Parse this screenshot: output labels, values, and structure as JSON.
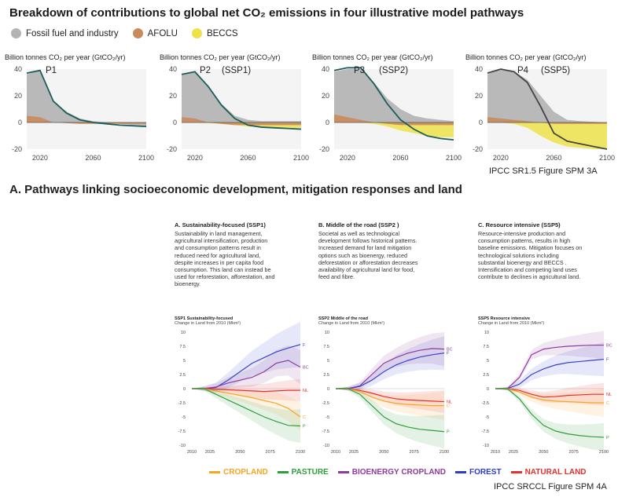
{
  "header": {
    "title": "Breakdown of contributions to global net CO₂ emissions in four illustrative model pathways",
    "legend": [
      {
        "label": "Fossil fuel and industry",
        "color": "#b3b3b3"
      },
      {
        "label": "AFOLU",
        "color": "#c98b5a"
      },
      {
        "label": "BECCS",
        "color": "#ede24a"
      }
    ],
    "caption": "IPCC SR1.5 Figure SPM 3A"
  },
  "section2": {
    "title": "A. Pathways linking socioeconomic development, mitigation responses and land",
    "caption": "IPCC SRCCL Figure SPM 4A",
    "legend": [
      {
        "label": "CROPLAND",
        "color": "#f5a623"
      },
      {
        "label": "PASTURE",
        "color": "#2e9e3a"
      },
      {
        "label": "BIOENERGY CROPLAND",
        "color": "#8e3a9e"
      },
      {
        "label": "FOREST",
        "color": "#2e3acb"
      },
      {
        "label": "NATURAL LAND",
        "color": "#e53030"
      }
    ],
    "columns": [
      {
        "heading": "A. Sustainability-focused (SSP1)",
        "lines": [
          "Sustainability in land management,",
          "agricultural intensification, production",
          "and consumption patterns result in",
          "reduced need for agricultural land,",
          "despite increases in per capita food",
          "consumption. This land can instead be",
          "used for reforestation, afforestation, and",
          "bioenergy."
        ],
        "chart_title": "SSP1 Sustainability-focused",
        "chart_sub": "Change in Land from 2010 (Mkm²)"
      },
      {
        "heading": "B. Middle of the road (SSP2 )",
        "lines": [
          "Societal as well as technological",
          "development follows historical patterns.",
          "Increased demand for land mitigation",
          "options such as bioenergy, reduced",
          "deforestation or afforestation decreases",
          "availability of agricultural land for food,",
          "feed and fibre."
        ],
        "chart_title": "SSP2 Middle of the road",
        "chart_sub": "Change in Land from 2010 (Mkm²)"
      },
      {
        "heading": "C. Resource intensive (SSP5)",
        "lines": [
          "Resource-intensive production and",
          "consumption patterns,  results in high",
          "baseline emissions.  Mitigation focuses on",
          "technological solutions including",
          "substantial bioenergy and BECCS .",
          "Intensification and competing land uses",
          "contribute to declines in agricultural land."
        ],
        "chart_title": "SSP5 Resource intensive",
        "chart_sub": "Change in Land from 2010 (Mkm²)"
      }
    ]
  },
  "chart_data": [
    {
      "type": "area",
      "id": "P1",
      "label": "P1",
      "label2": "",
      "ylabel": "Billion tonnes CO₂ per year (GtCO₂/yr)",
      "x": [
        2010,
        2020,
        2030,
        2040,
        2050,
        2060,
        2070,
        2080,
        2090,
        2100
      ],
      "series": [
        {
          "name": "Fossil fuel and industry",
          "values": [
            36,
            39,
            16,
            8,
            3,
            1,
            0,
            -1,
            -2,
            -3
          ]
        },
        {
          "name": "AFOLU",
          "values": [
            5,
            4,
            0,
            -0.5,
            -1,
            -1,
            -1,
            -1,
            -1,
            -1
          ]
        },
        {
          "name": "BECCS",
          "values": [
            0,
            0,
            0,
            0,
            0,
            -0.2,
            -0.3,
            -0.4,
            -0.5,
            -0.5
          ]
        },
        {
          "name": "Net",
          "values": [
            37,
            39,
            16,
            7,
            2,
            0,
            -1,
            -2,
            -2.5,
            -3
          ]
        }
      ],
      "xticks": [
        "2020",
        "2060",
        "2100"
      ],
      "yticks": [
        40,
        20,
        0,
        -20
      ],
      "ylim": [
        -20,
        40
      ]
    },
    {
      "type": "area",
      "id": "P2",
      "label": "P2",
      "label2": "(SSP1)",
      "ylabel": "Billion tonnes CO₂ per year (GtCO₂/yr)",
      "x": [
        2010,
        2020,
        2030,
        2040,
        2050,
        2060,
        2070,
        2080,
        2090,
        2100
      ],
      "series": [
        {
          "name": "Fossil fuel and industry",
          "values": [
            36,
            38,
            27,
            14,
            5,
            2,
            1,
            1,
            1,
            1
          ]
        },
        {
          "name": "AFOLU",
          "values": [
            4,
            3,
            0,
            -1,
            -2,
            -2,
            -2,
            -2,
            -2,
            -2
          ]
        },
        {
          "name": "BECCS",
          "values": [
            0,
            0,
            -0.5,
            -1,
            -2,
            -3,
            -3.5,
            -4,
            -4,
            -4
          ]
        },
        {
          "name": "Net",
          "values": [
            36,
            38,
            27,
            13,
            3,
            -2,
            -3.5,
            -4,
            -4.5,
            -5
          ]
        }
      ],
      "xticks": [
        "2020",
        "2060",
        "2100"
      ],
      "yticks": [
        40,
        20,
        0,
        -20
      ],
      "ylim": [
        -20,
        40
      ]
    },
    {
      "type": "area",
      "id": "P3",
      "label": "P3",
      "label2": "(SSP2)",
      "ylabel": "Billion tonnes CO₂ per year (GtCO₂/yr)",
      "x": [
        2010,
        2020,
        2030,
        2040,
        2050,
        2060,
        2070,
        2080,
        2090,
        2100
      ],
      "series": [
        {
          "name": "Fossil fuel and industry",
          "values": [
            38,
            40,
            40,
            30,
            18,
            10,
            5,
            3,
            2,
            1
          ]
        },
        {
          "name": "AFOLU",
          "values": [
            6,
            4,
            2,
            0,
            -1,
            -2,
            -2,
            -2,
            -2,
            -2
          ]
        },
        {
          "name": "BECCS",
          "values": [
            0,
            0,
            0,
            -1,
            -3,
            -6,
            -8,
            -10,
            -11,
            -11
          ]
        },
        {
          "name": "Net",
          "values": [
            39,
            41,
            41,
            29,
            14,
            2,
            -5,
            -10,
            -12,
            -13
          ]
        }
      ],
      "xticks": [
        "2020",
        "2060",
        "2100"
      ],
      "yticks": [
        40,
        20,
        0,
        -20
      ],
      "ylim": [
        -20,
        40
      ]
    },
    {
      "type": "area",
      "id": "P4",
      "label": "P4",
      "label2": "(SSP5)",
      "ylabel": "Billion tonnes CO₂ per year (GtCO₂/yr)",
      "x": [
        2010,
        2020,
        2030,
        2040,
        2050,
        2060,
        2070,
        2080,
        2090,
        2100
      ],
      "series": [
        {
          "name": "Fossil fuel and industry",
          "values": [
            36,
            40,
            38,
            32,
            20,
            8,
            2,
            1,
            0.5,
            0
          ]
        },
        {
          "name": "AFOLU",
          "values": [
            4,
            3,
            2,
            1,
            0,
            -1,
            -1,
            -1,
            -1,
            -1
          ]
        },
        {
          "name": "BECCS",
          "values": [
            0,
            0,
            -1,
            -4,
            -10,
            -15,
            -18,
            -19,
            -20,
            -20
          ]
        },
        {
          "name": "Net",
          "values": [
            37,
            40,
            38,
            30,
            12,
            -8,
            -14,
            -16,
            -18,
            -20
          ]
        }
      ],
      "xticks": [
        "2020",
        "2060",
        "2100"
      ],
      "yticks": [
        40,
        20,
        0,
        -20
      ],
      "ylim": [
        -20,
        40
      ]
    },
    {
      "type": "line",
      "id": "SSP1",
      "x": [
        2010,
        2020,
        2030,
        2040,
        2050,
        2060,
        2070,
        2080,
        2090,
        2100
      ],
      "xticks": [
        "2010",
        "2025",
        "2050",
        "2075",
        "2100"
      ],
      "yticks": [
        "10",
        "7.5",
        "5",
        "2.5",
        "0",
        "-2.5",
        "-5",
        "-7.5",
        "-10"
      ],
      "ylim": [
        -10,
        10
      ],
      "series": [
        {
          "name": "F",
          "color": "#3a43c8",
          "values": [
            0,
            0,
            0.2,
            1.5,
            3,
            4.5,
            5.5,
            6.5,
            7.2,
            7.8
          ],
          "band": 4
        },
        {
          "name": "BC",
          "color": "#8e3a9e",
          "values": [
            0,
            0,
            0.3,
            1,
            1.5,
            2,
            3,
            4.5,
            5,
            3.8
          ],
          "band": 3
        },
        {
          "name": "NL",
          "color": "#e53030",
          "values": [
            0,
            0,
            -0.1,
            -0.2,
            -0.3,
            -0.4,
            -0.5,
            -0.4,
            -0.3,
            -0.3
          ],
          "band": 2
        },
        {
          "name": "C",
          "color": "#f5a623",
          "values": [
            0,
            0,
            -0.4,
            -0.8,
            -1.2,
            -1.6,
            -2.1,
            -2.6,
            -3.5,
            -5
          ],
          "band": 2.5
        },
        {
          "name": "P",
          "color": "#2e9e3a",
          "values": [
            0,
            0,
            -1,
            -2,
            -3,
            -4,
            -5,
            -5.8,
            -6.5,
            -6.6
          ],
          "band": 3
        }
      ]
    },
    {
      "type": "line",
      "id": "SSP2",
      "x": [
        2010,
        2020,
        2030,
        2040,
        2050,
        2060,
        2070,
        2080,
        2090,
        2100
      ],
      "xticks": [
        "2010",
        "2025",
        "2050",
        "2075",
        "2100"
      ],
      "yticks": [
        "10",
        "7.5",
        "5",
        "2.5",
        "0",
        "-2.5",
        "-5",
        "-7.5",
        "-10"
      ],
      "ylim": [
        -10,
        10
      ],
      "series": [
        {
          "name": "BC",
          "color": "#8e3a9e",
          "values": [
            0,
            0,
            0.5,
            2.5,
            4.5,
            5.5,
            6.3,
            6.8,
            7.1,
            7
          ],
          "band": 3
        },
        {
          "name": "F",
          "color": "#3a43c8",
          "values": [
            0,
            0,
            0.4,
            1.5,
            3,
            4.2,
            5,
            5.6,
            6,
            6.3
          ],
          "band": 3
        },
        {
          "name": "NL",
          "color": "#e53030",
          "values": [
            0,
            0,
            -0.3,
            -0.8,
            -1.4,
            -1.8,
            -2,
            -2.1,
            -2.2,
            -2.3
          ],
          "band": 2
        },
        {
          "name": "C",
          "color": "#f5a623",
          "values": [
            0,
            0,
            -0.5,
            -1.5,
            -2.2,
            -2.6,
            -2.8,
            -2.9,
            -3,
            -3
          ],
          "band": 2.5
        },
        {
          "name": "P",
          "color": "#2e9e3a",
          "values": [
            0,
            0,
            -1,
            -3,
            -5,
            -6.2,
            -6.8,
            -7.2,
            -7.4,
            -7.6
          ],
          "band": 3
        }
      ]
    },
    {
      "type": "line",
      "id": "SSP5",
      "x": [
        2010,
        2020,
        2030,
        2040,
        2050,
        2060,
        2070,
        2080,
        2090,
        2100
      ],
      "xticks": [
        "2010",
        "2025",
        "2050",
        "2075",
        "2100"
      ],
      "yticks": [
        "10",
        "7.5",
        "5",
        "2.5",
        "0",
        "-2.5",
        "-5",
        "-7.5",
        "-10"
      ],
      "ylim": [
        -10,
        10
      ],
      "series": [
        {
          "name": "BC",
          "color": "#8e3a9e",
          "values": [
            0,
            0,
            2,
            6,
            7,
            7.3,
            7.5,
            7.6,
            7.7,
            7.7
          ],
          "band": 2.5
        },
        {
          "name": "F",
          "color": "#3a43c8",
          "values": [
            0,
            0,
            0.8,
            2.5,
            3.5,
            4.2,
            4.6,
            4.8,
            5,
            5.2
          ],
          "band": 3
        },
        {
          "name": "NL",
          "color": "#e53030",
          "values": [
            0,
            0,
            -0.3,
            -1,
            -1.5,
            -1.4,
            -1.2,
            -1.1,
            -1,
            -1
          ],
          "band": 2
        },
        {
          "name": "C",
          "color": "#f5a623",
          "values": [
            0,
            0,
            -0.6,
            -1.5,
            -2,
            -2.2,
            -2.3,
            -2.4,
            -2.5,
            -2.5
          ],
          "band": 2.5
        },
        {
          "name": "P",
          "color": "#2e9e3a",
          "values": [
            0,
            0,
            -1.8,
            -4.5,
            -6.5,
            -7.5,
            -8,
            -8.3,
            -8.5,
            -8.6
          ],
          "band": 2.5
        }
      ]
    }
  ]
}
